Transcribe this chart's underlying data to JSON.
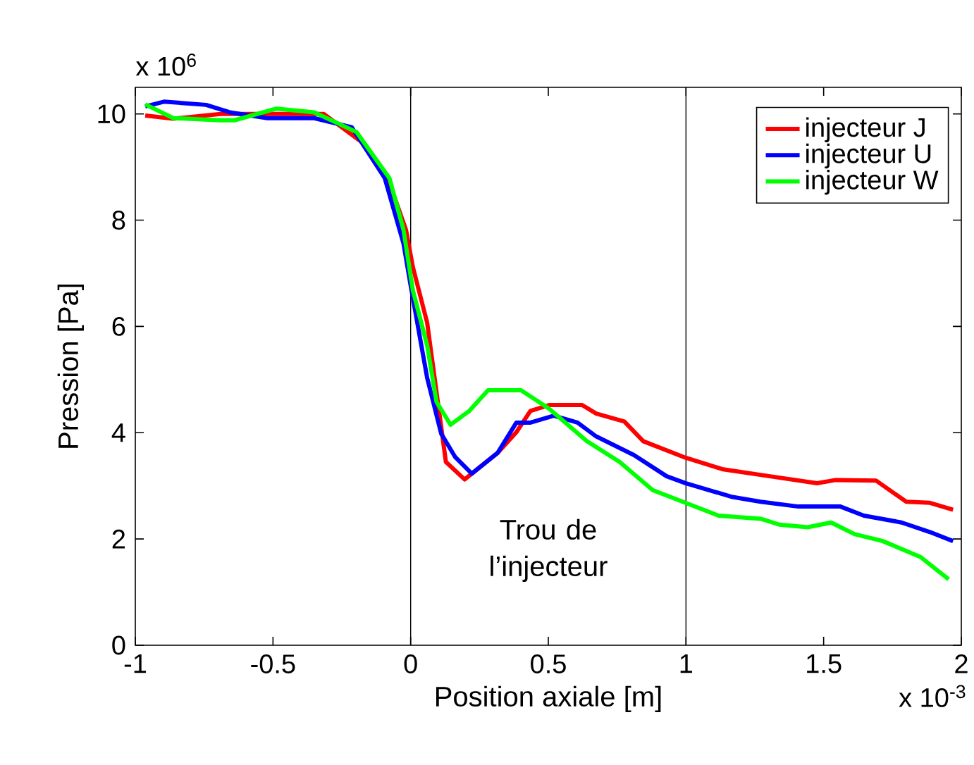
{
  "chart_data": {
    "type": "line",
    "xlabel": "Position axiale [m]",
    "ylabel": "Pression [Pa]",
    "xlim": [
      -1,
      2
    ],
    "xticks": [
      -1,
      -0.5,
      0,
      0.5,
      1,
      1.5,
      2
    ],
    "ylim": [
      0,
      10.5
    ],
    "yticks": [
      0,
      2,
      4,
      6,
      8,
      10
    ],
    "legend": "top right",
    "grid": false,
    "line_style": "solid",
    "marker": "none",
    "ref_lines": [
      {
        "axis": "x",
        "value": 0,
        "color": "#000000"
      },
      {
        "axis": "x",
        "value": 1,
        "color": "#000000"
      }
    ],
    "annotations": [
      "Trou de l’injecteur",
      "x 10$^{6}$",
      "x 10$^{-3}$"
    ],
    "series": [
      {
        "name": "injecteur J",
        "color": "#ff0000",
        "x": [
          -0.964,
          -0.862,
          -0.69,
          -0.52,
          -0.316,
          -0.18,
          -0.077,
          -0.017,
          0.008,
          0.06,
          0.128,
          0.196,
          0.316,
          0.384,
          0.435,
          0.503,
          0.623,
          0.674,
          0.776,
          0.845,
          0.998,
          1.135,
          1.305,
          1.476,
          1.544,
          1.69,
          1.8,
          1.886,
          1.97
        ],
        "values": [
          9.97,
          9.91,
          10.0,
          10.0,
          10.0,
          9.48,
          8.7,
          7.82,
          7.12,
          6.07,
          3.45,
          3.12,
          3.62,
          4.01,
          4.41,
          4.52,
          4.52,
          4.36,
          4.21,
          3.84,
          3.53,
          3.31,
          3.18,
          3.05,
          3.11,
          3.1,
          2.7,
          2.68,
          2.55
        ]
      },
      {
        "name": "injecteur U",
        "color": "#0000ff",
        "x": [
          -0.964,
          -0.896,
          -0.743,
          -0.657,
          -0.52,
          -0.35,
          -0.214,
          -0.094,
          -0.026,
          0.0,
          0.06,
          0.111,
          0.162,
          0.222,
          0.316,
          0.384,
          0.435,
          0.52,
          0.606,
          0.674,
          0.811,
          0.93,
          0.998,
          1.169,
          1.271,
          1.408,
          1.561,
          1.646,
          1.783,
          1.886,
          1.97
        ],
        "values": [
          10.14,
          10.23,
          10.17,
          10.03,
          9.92,
          9.92,
          9.75,
          8.79,
          7.56,
          6.77,
          5.03,
          3.98,
          3.54,
          3.23,
          3.62,
          4.19,
          4.19,
          4.32,
          4.19,
          3.93,
          3.58,
          3.18,
          3.05,
          2.79,
          2.7,
          2.61,
          2.61,
          2.44,
          2.31,
          2.13,
          1.96
        ]
      },
      {
        "name": "injecteur W",
        "color": "#00ff00",
        "x": [
          -0.964,
          -0.862,
          -0.69,
          -0.64,
          -0.487,
          -0.35,
          -0.197,
          -0.077,
          -0.026,
          0.008,
          0.06,
          0.094,
          0.145,
          0.213,
          0.281,
          0.401,
          0.503,
          0.64,
          0.759,
          0.879,
          0.998,
          1.118,
          1.271,
          1.339,
          1.442,
          1.527,
          1.613,
          1.715,
          1.852,
          1.954
        ],
        "values": [
          10.18,
          9.92,
          9.88,
          9.88,
          10.1,
          10.03,
          9.66,
          8.79,
          7.82,
          6.68,
          5.64,
          4.58,
          4.15,
          4.41,
          4.8,
          4.8,
          4.45,
          3.84,
          3.45,
          2.92,
          2.68,
          2.44,
          2.38,
          2.27,
          2.22,
          2.31,
          2.09,
          1.96,
          1.66,
          1.24
        ]
      }
    ]
  }
}
